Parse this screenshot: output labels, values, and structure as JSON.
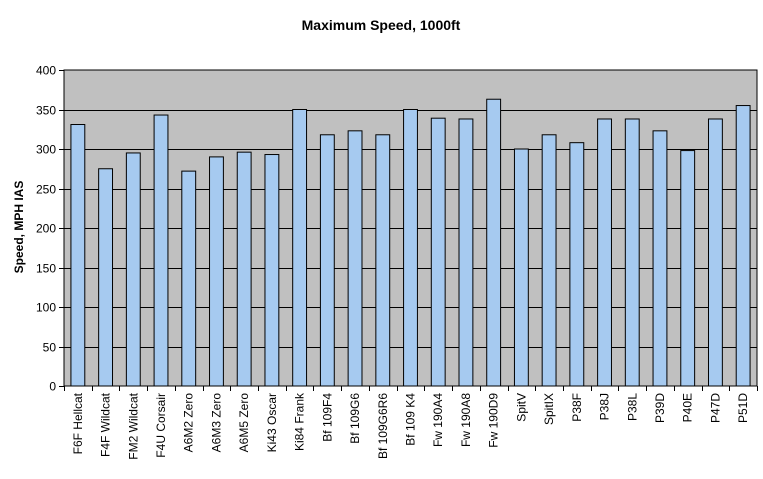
{
  "chart_data": {
    "type": "bar",
    "title": "Maximum Speed, 1000ft",
    "xlabel": "",
    "ylabel": "Speed, MPH IAS",
    "ylim": [
      0,
      400
    ],
    "yticks": [
      0,
      50,
      100,
      150,
      200,
      250,
      300,
      350,
      400
    ],
    "grid": true,
    "legend": "none",
    "colors": {
      "plot_background": "#c0c0c0",
      "bar_fill": "#a6caf0",
      "bar_stroke": "#000000",
      "gridline": "#000000"
    },
    "categories": [
      "F6F Hellcat",
      "F4F Wildcat",
      "FM2 Wildcat",
      "F4U Corsair",
      "A6M2 Zero",
      "A6M3 Zero",
      "A6M5 Zero",
      "Ki43 Oscar",
      "Ki84 Frank",
      "Bf 109F4",
      "Bf 109G6",
      "Bf 109G6R6",
      "Bf 109 K4",
      "Fw 190A4",
      "Fw 190A8",
      "Fw 190D9",
      "SpitV",
      "SpitIX",
      "P38F",
      "P38J",
      "P38L",
      "P39D",
      "P40E",
      "P47D",
      "P51D"
    ],
    "values": [
      331,
      275,
      295,
      343,
      272,
      290,
      296,
      293,
      350,
      318,
      323,
      318,
      350,
      339,
      338,
      363,
      300,
      318,
      308,
      338,
      338,
      323,
      298,
      338,
      355
    ]
  }
}
